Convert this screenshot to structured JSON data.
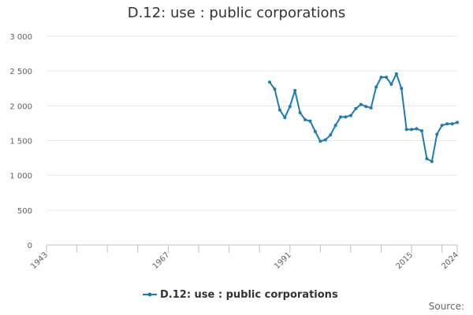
{
  "page": {
    "title": "D.12: use : public corporations",
    "source_label": "Source:"
  },
  "colors": {
    "series": "#1d7ab3",
    "grid": "#e6e6e6",
    "axis": "#c0c0c0"
  },
  "chart_data": {
    "type": "line",
    "title": "D.12: use : public corporations",
    "xlabel": "",
    "ylabel": "",
    "xlim": [
      1943,
      2024
    ],
    "ylim": [
      0,
      3000
    ],
    "x_ticks": [
      1943,
      1967,
      1991,
      2015,
      2024
    ],
    "x_minor_ticks": [
      1949,
      1955,
      1961,
      1973,
      1979,
      1985,
      1997,
      2003,
      2009,
      2021
    ],
    "y_ticks": [
      0,
      500,
      1000,
      1500,
      2000,
      2500,
      3000
    ],
    "y_tick_labels": [
      "0",
      "500",
      "1 000",
      "1 500",
      "2 000",
      "2 500",
      "3 000"
    ],
    "grid": true,
    "legend_position": "bottom",
    "series": [
      {
        "name": "D.12: use : public corporations",
        "x": [
          1987,
          1988,
          1989,
          1990,
          1991,
          1992,
          1993,
          1994,
          1995,
          1996,
          1997,
          1998,
          1999,
          2000,
          2001,
          2002,
          2003,
          2004,
          2005,
          2006,
          2007,
          2008,
          2009,
          2010,
          2011,
          2012,
          2013,
          2014,
          2015,
          2016,
          2017,
          2018,
          2019,
          2020,
          2021,
          2022,
          2023,
          2024
        ],
        "values": [
          2340,
          2240,
          1940,
          1830,
          1990,
          2220,
          1900,
          1800,
          1780,
          1630,
          1490,
          1510,
          1580,
          1720,
          1840,
          1840,
          1860,
          1960,
          2020,
          1990,
          1970,
          2270,
          2410,
          2410,
          2310,
          2460,
          2250,
          1660,
          1660,
          1670,
          1640,
          1240,
          1200,
          1590,
          1720,
          1740,
          1740,
          1760
        ]
      }
    ]
  }
}
